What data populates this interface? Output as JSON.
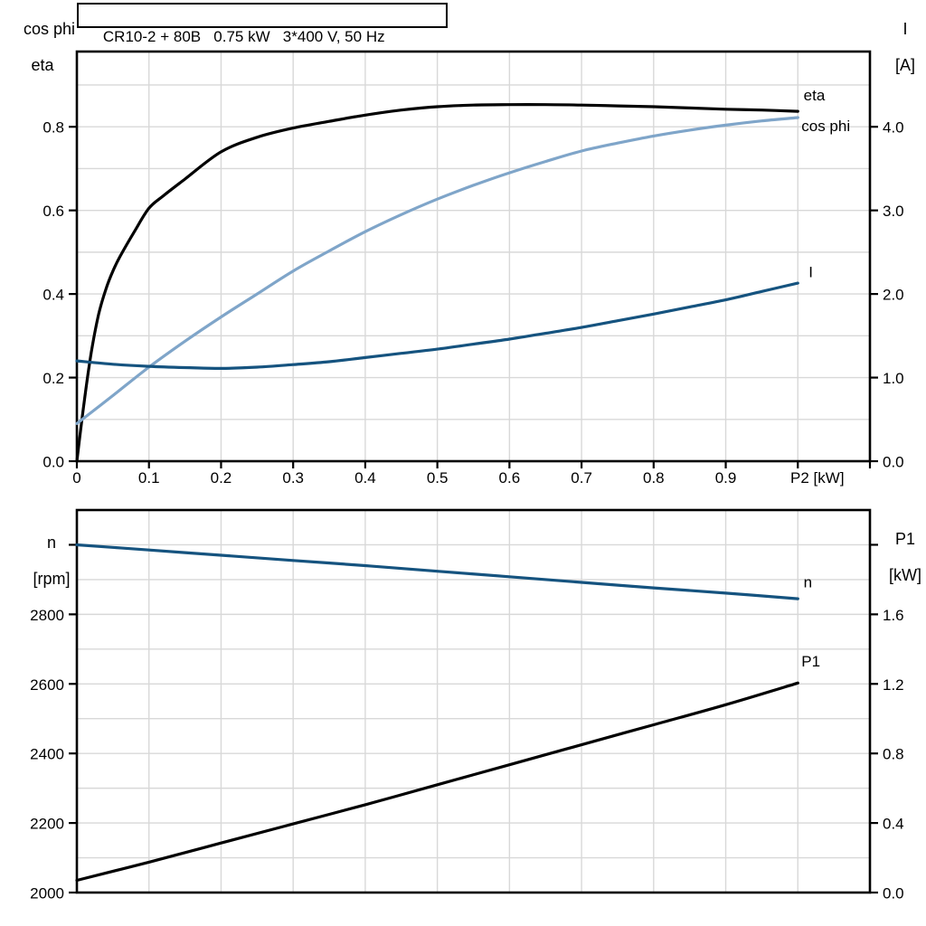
{
  "title": "CR10-2 + 80B   0.75 kW   3*400 V, 50 Hz",
  "colors": {
    "black": "#000000",
    "dark_blue": "#15537f",
    "light_blue": "#7fa5c9",
    "grid": "#d8d8d8",
    "frame": "#000000",
    "background": "#ffffff"
  },
  "chart_data": [
    {
      "type": "line",
      "position": "top",
      "grid": true,
      "x_axis": {
        "label": "P2 [kW]",
        "label_x": 1.027,
        "min": 0,
        "max": 1.1,
        "grid_step": 0.1,
        "tick_values": [
          0,
          0.1,
          0.2,
          0.3,
          0.4,
          0.5,
          0.6,
          0.7,
          0.8,
          0.9
        ],
        "tick_labels": [
          "0",
          "0.1",
          "0.2",
          "0.3",
          "0.4",
          "0.5",
          "0.6",
          "0.7",
          "0.8",
          "0.9"
        ],
        "extra_tick_values": [
          1.0,
          1.1
        ]
      },
      "left_axis": {
        "header": [
          "cos phi",
          "eta"
        ],
        "min": 0,
        "max": 0.98,
        "grid_step": 0.1,
        "tick_values": [
          0,
          0.2,
          0.4,
          0.6,
          0.8
        ],
        "tick_labels": [
          "0.0",
          "0.2",
          "0.4",
          "0.6",
          "0.8"
        ],
        "extra_tick_values": []
      },
      "right_axis": {
        "header": [
          "I",
          "[A]"
        ],
        "min": 0,
        "max": 4.9,
        "tick_values": [
          0,
          1,
          2,
          3,
          4
        ],
        "tick_labels": [
          "0.0",
          "1.0",
          "2.0",
          "3.0",
          "4.0"
        ],
        "extra_tick_values": []
      },
      "series": [
        {
          "name": "eta",
          "axis": "left",
          "color": "black",
          "x": [
            0,
            0.01,
            0.02,
            0.03,
            0.04,
            0.05,
            0.06,
            0.08,
            0.1,
            0.12,
            0.15,
            0.2,
            0.25,
            0.3,
            0.35,
            0.4,
            0.45,
            0.5,
            0.55,
            0.6,
            0.65,
            0.7,
            0.75,
            0.8,
            0.85,
            0.9,
            0.95,
            1.0
          ],
          "y": [
            0,
            0.14,
            0.26,
            0.35,
            0.41,
            0.455,
            0.49,
            0.55,
            0.605,
            0.635,
            0.675,
            0.74,
            0.775,
            0.797,
            0.813,
            0.828,
            0.84,
            0.848,
            0.852,
            0.853,
            0.853,
            0.852,
            0.85,
            0.848,
            0.845,
            0.842,
            0.84,
            0.837
          ],
          "label": {
            "text": "eta",
            "x": 1.008,
            "y": 0.875
          }
        },
        {
          "name": "cos phi",
          "axis": "left",
          "color": "light_blue",
          "x": [
            0,
            0.05,
            0.1,
            0.15,
            0.2,
            0.25,
            0.3,
            0.35,
            0.4,
            0.45,
            0.5,
            0.55,
            0.6,
            0.65,
            0.7,
            0.75,
            0.8,
            0.85,
            0.9,
            0.95,
            1.0
          ],
          "y": [
            0.09,
            0.157,
            0.225,
            0.287,
            0.345,
            0.4,
            0.455,
            0.503,
            0.549,
            0.59,
            0.627,
            0.66,
            0.69,
            0.717,
            0.742,
            0.761,
            0.778,
            0.792,
            0.804,
            0.814,
            0.822
          ],
          "label": {
            "text": "cos phi",
            "x": 1.005,
            "y": 0.802
          }
        },
        {
          "name": "I",
          "axis": "right",
          "color": "dark_blue",
          "x": [
            0,
            0.05,
            0.1,
            0.15,
            0.2,
            0.25,
            0.3,
            0.35,
            0.4,
            0.45,
            0.5,
            0.55,
            0.6,
            0.65,
            0.7,
            0.75,
            0.8,
            0.85,
            0.9,
            0.95,
            1.0
          ],
          "y": [
            1.2,
            1.16,
            1.135,
            1.12,
            1.11,
            1.125,
            1.155,
            1.19,
            1.24,
            1.29,
            1.34,
            1.4,
            1.46,
            1.53,
            1.6,
            1.68,
            1.76,
            1.845,
            1.93,
            2.03,
            2.13
          ],
          "label": {
            "text": "I",
            "x": 1.015,
            "y": 2.26
          }
        }
      ]
    },
    {
      "type": "line",
      "position": "bottom",
      "grid": true,
      "x_axis": {
        "label": "",
        "label_x": null,
        "min": 0,
        "max": 1.1,
        "grid_step": 0.1,
        "tick_values": [],
        "tick_labels": [],
        "extra_tick_values": []
      },
      "left_axis": {
        "header": [
          "n",
          "[rpm]"
        ],
        "min": 2000,
        "max": 3100,
        "grid_step": 100,
        "tick_values": [
          2000,
          2200,
          2400,
          2600,
          2800
        ],
        "tick_labels": [
          "2000",
          "2200",
          "2400",
          "2600",
          "2800"
        ],
        "extra_tick_values": [
          3000
        ]
      },
      "right_axis": {
        "header": [
          "P1",
          "[kW]"
        ],
        "min": 0,
        "max": 2.2,
        "tick_values": [
          0,
          0.4,
          0.8,
          1.2,
          1.6
        ],
        "tick_labels": [
          "0.0",
          "0.4",
          "0.8",
          "1.2",
          "1.6"
        ],
        "extra_tick_values": [
          2.0
        ]
      },
      "series": [
        {
          "name": "n",
          "axis": "left",
          "color": "dark_blue",
          "x": [
            0,
            0.1,
            0.2,
            0.3,
            0.4,
            0.5,
            0.6,
            0.7,
            0.8,
            0.9,
            1.0
          ],
          "y": [
            3000,
            2985,
            2970,
            2955,
            2940,
            2924,
            2908,
            2892,
            2876,
            2861,
            2845
          ],
          "label": {
            "text": "n",
            "x": 1.008,
            "y": 2892
          }
        },
        {
          "name": "P1",
          "axis": "right",
          "color": "black",
          "x": [
            0,
            0.1,
            0.2,
            0.3,
            0.4,
            0.5,
            0.6,
            0.7,
            0.8,
            0.9,
            1.0
          ],
          "y": [
            0.07,
            0.175,
            0.285,
            0.395,
            0.505,
            0.62,
            0.735,
            0.85,
            0.965,
            1.08,
            1.205
          ],
          "label": {
            "text": "P1",
            "x": 1.005,
            "y": 1.33
          }
        }
      ]
    }
  ]
}
